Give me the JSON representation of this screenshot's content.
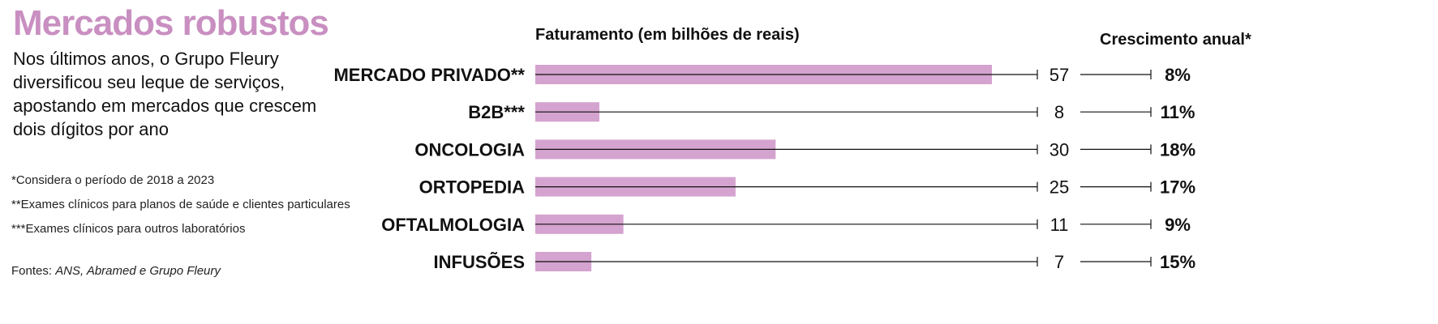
{
  "title": "Mercados robustos",
  "subtitle": "Nos últimos anos, o Grupo Fleury diversificou seu leque de serviços, apostando em mercados que crescem dois dígitos por ano",
  "notes": [
    "*Considera o período de 2018 a 2023",
    "**Exames clínicos para planos de saúde e clientes particulares",
    "***Exames clínicos para outros laboratórios"
  ],
  "source": {
    "prefix": "Fontes: ",
    "names": "ANS, Abramed e Grupo Fleury"
  },
  "colors": {
    "bar": "#d5a3cf",
    "title": "#c98fc1",
    "line": "#111111"
  },
  "chart_data": {
    "type": "bar",
    "orientation": "horizontal",
    "value_header": "Faturamento (em bilhões de reais)",
    "growth_header": "Crescimento anual*",
    "categories": [
      "MERCADO PRIVADO**",
      "B2B***",
      "ONCOLOGIA",
      "ORTOPEDIA",
      "OFTALMOLOGIA",
      "INFUSÕES"
    ],
    "values": [
      57,
      8,
      30,
      25,
      11,
      7
    ],
    "value_labels": [
      "57",
      "8",
      "30",
      "25",
      "11",
      "7"
    ],
    "growth": [
      "8%",
      "11%",
      "18%",
      "17%",
      "9%",
      "15%"
    ],
    "xlim": [
      0,
      63
    ],
    "grid": false,
    "legend": "none"
  }
}
